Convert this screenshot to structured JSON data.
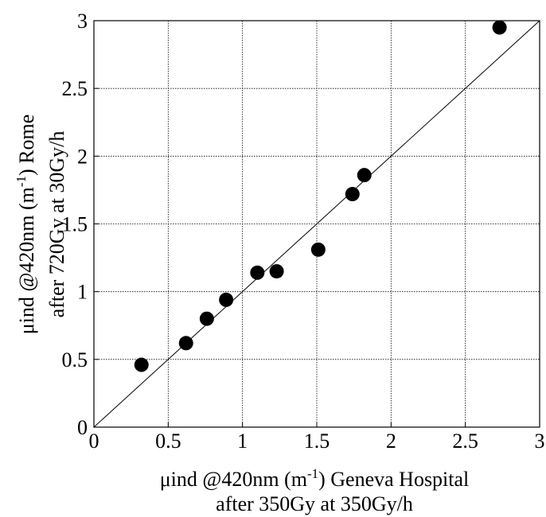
{
  "chart_data": {
    "type": "scatter",
    "x": [
      0.32,
      0.62,
      0.76,
      0.89,
      1.1,
      1.23,
      1.51,
      1.74,
      1.82,
      2.73
    ],
    "y": [
      0.46,
      0.62,
      0.8,
      0.94,
      1.14,
      1.15,
      1.31,
      1.72,
      1.86,
      2.95
    ],
    "xlim": [
      0,
      3
    ],
    "ylim": [
      0,
      3
    ],
    "xticks": [
      "0",
      "0.5",
      "1",
      "1.5",
      "2",
      "2.5",
      "3"
    ],
    "yticks": [
      "0",
      "0.5",
      "1",
      "1.5",
      "2",
      "2.5",
      "3"
    ],
    "grid": true,
    "reference_line": {
      "from": [
        0,
        0
      ],
      "to": [
        3,
        3
      ]
    },
    "xlabel_line1_pre": "μind @420nm (m",
    "xlabel_sup": "-1",
    "xlabel_line1_post": ") Geneva Hospital",
    "xlabel_line2": "after 350Gy at 350Gy/h",
    "ylabel_line1_pre": "μind @420nm (m",
    "ylabel_sup": "-1",
    "ylabel_line1_post": ") Rome",
    "ylabel_line2": "after 720Gy at 30Gy/h",
    "marker_color": "#000000"
  }
}
